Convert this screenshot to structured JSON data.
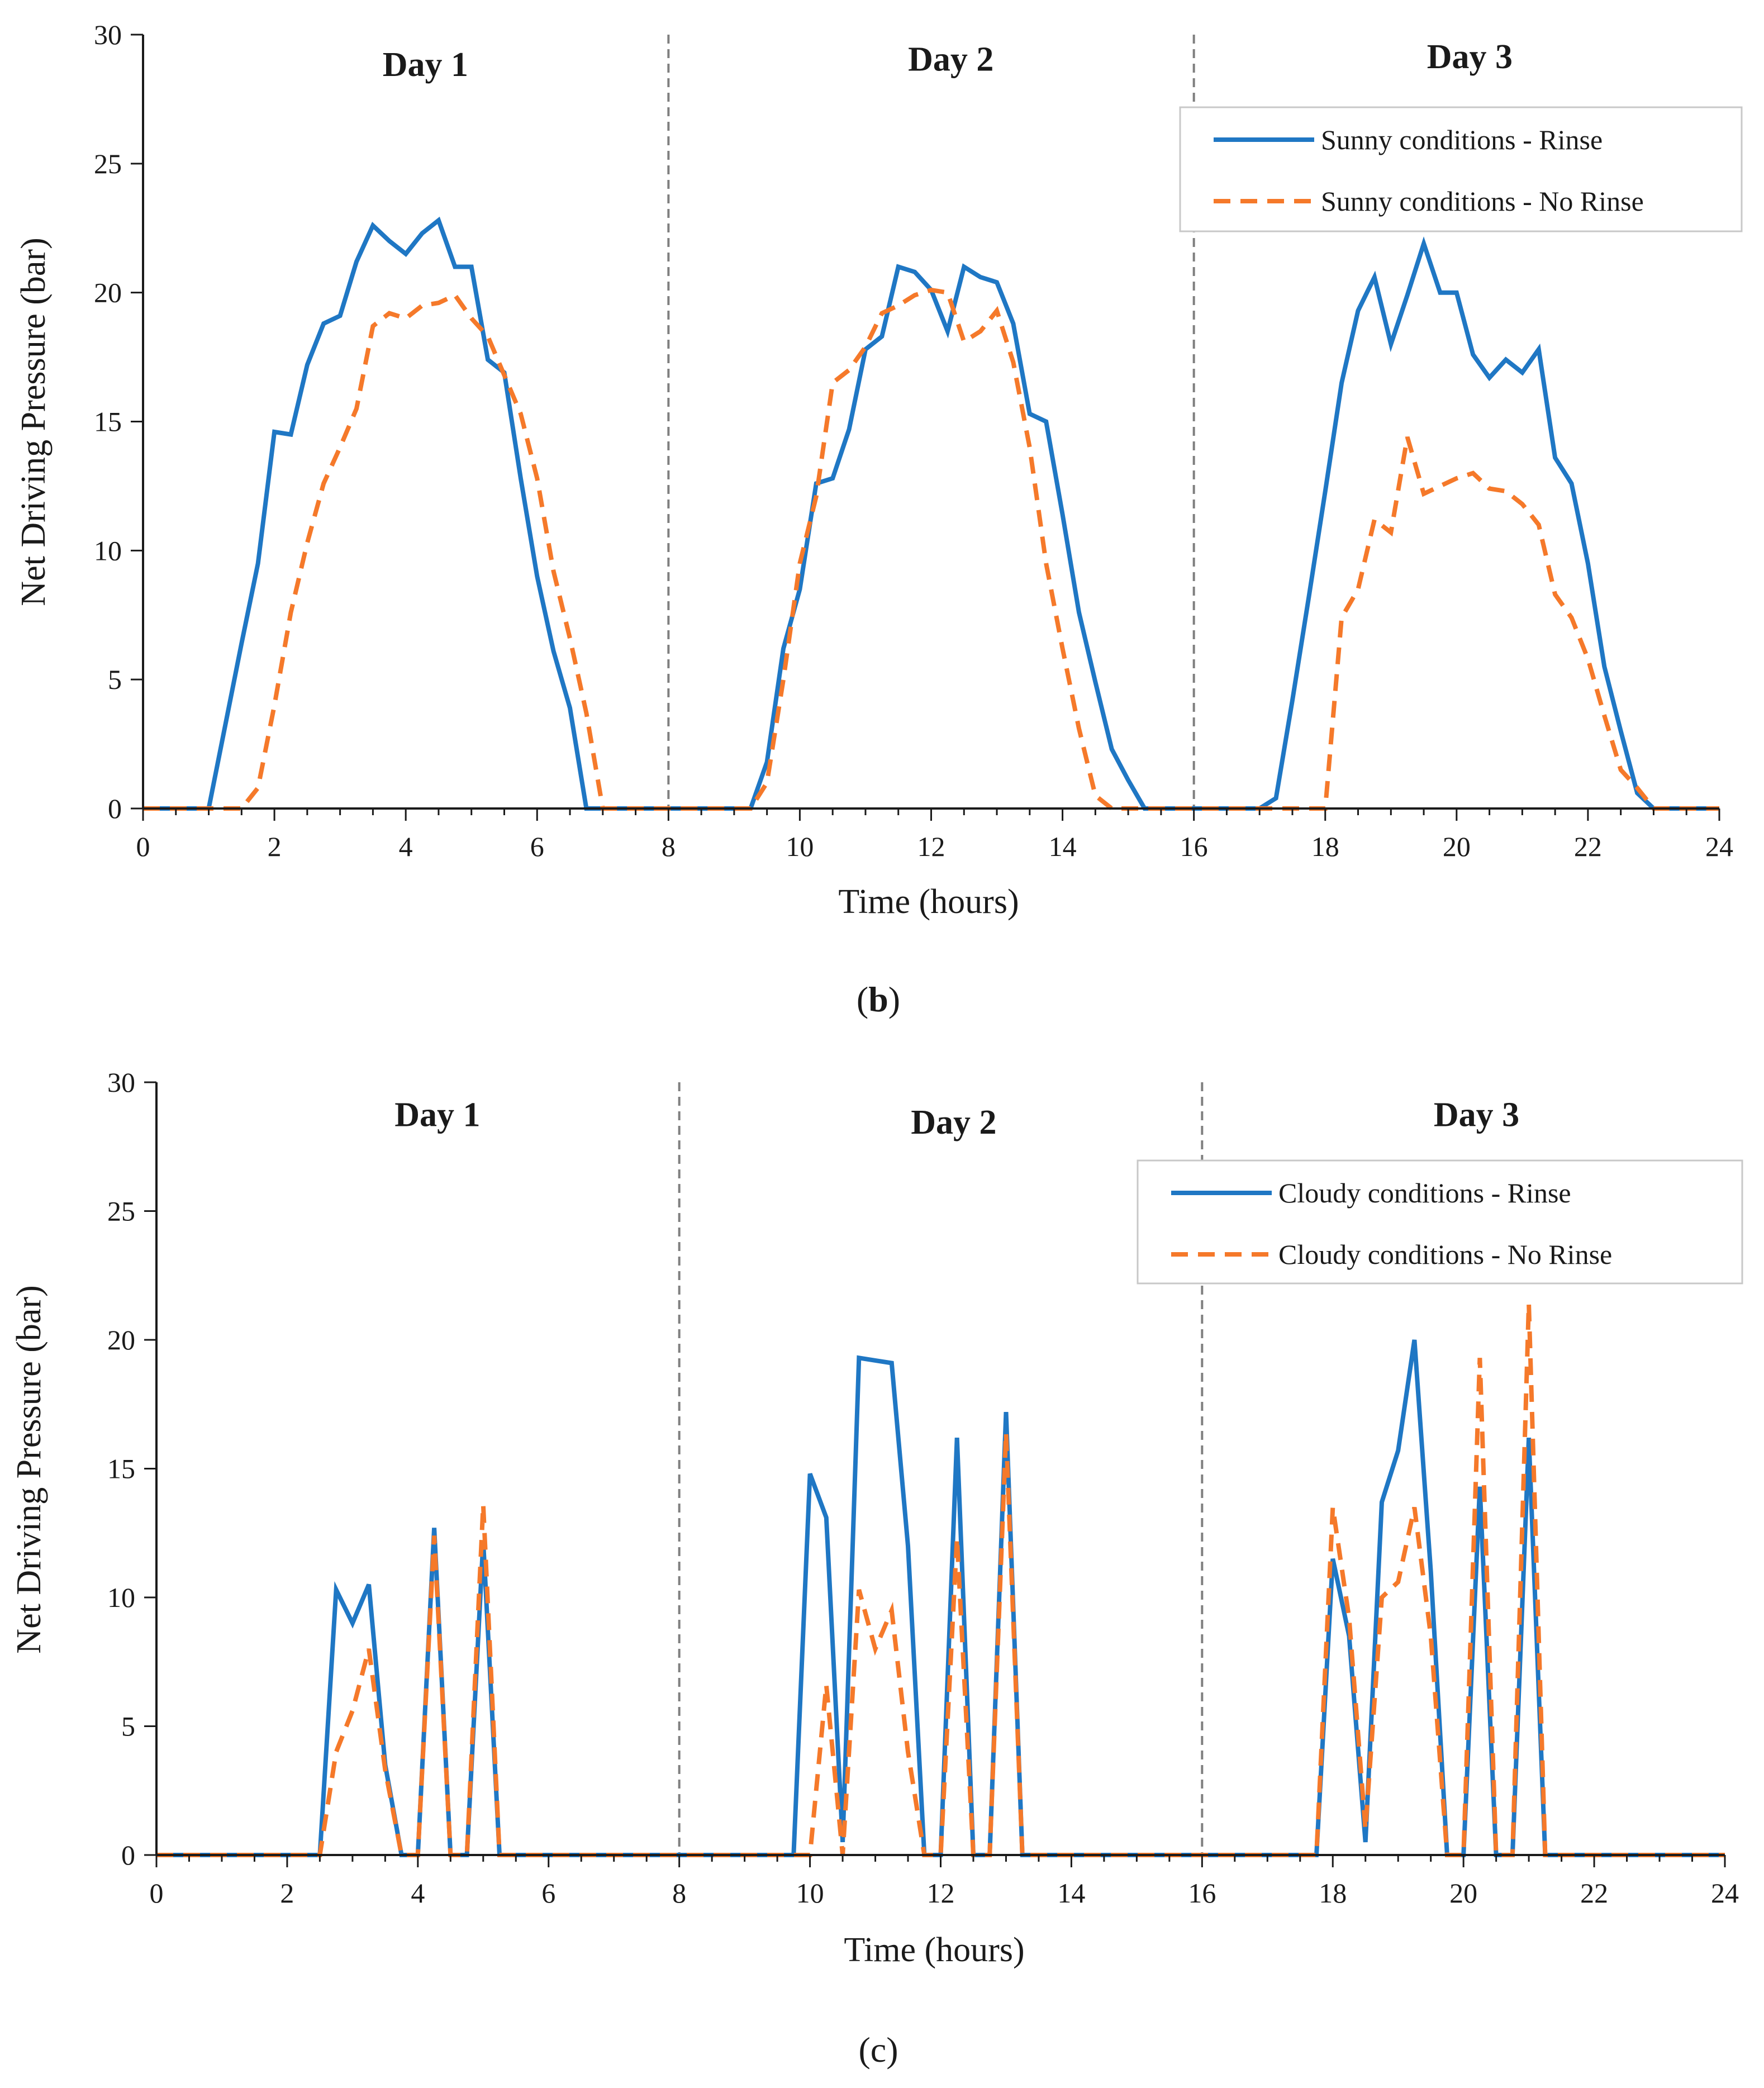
{
  "colors": {
    "rinse": "#1f77c4",
    "no_rinse": "#f5792a",
    "axis": "#1a1a1a",
    "divider": "#7f7f7f",
    "legend_border": "#c8c8c8"
  },
  "chart_data": [
    {
      "type": "line",
      "panel": "b",
      "caption": {
        "open": "(",
        "letter": "b",
        "close": ")"
      },
      "xlabel": "Time (hours)",
      "ylabel": "Net Driving Pressure (bar)",
      "xlim": [
        0,
        24
      ],
      "ylim": [
        0,
        30
      ],
      "xticks": [
        0,
        2,
        4,
        6,
        8,
        10,
        12,
        14,
        16,
        18,
        20,
        22,
        24
      ],
      "yticks": [
        0,
        5,
        10,
        15,
        20,
        25,
        30
      ],
      "day_dividers": [
        8,
        16
      ],
      "day_labels": [
        {
          "text": "Day 1",
          "x": 4.3,
          "y": 28.4
        },
        {
          "text": "Day 2",
          "x": 12.3,
          "y": 28.6
        },
        {
          "text": "Day 3",
          "x": 20.2,
          "y": 28.7
        }
      ],
      "legend": {
        "position": "top-right"
      },
      "series": [
        {
          "name": "Sunny conditions - Rinse",
          "style": "solid",
          "x": [
            0,
            0.25,
            0.5,
            0.75,
            1.0,
            1.25,
            1.5,
            1.75,
            2.0,
            2.25,
            2.5,
            2.75,
            3.0,
            3.25,
            3.5,
            3.75,
            4.0,
            4.25,
            4.5,
            4.75,
            5.0,
            5.25,
            5.5,
            5.75,
            6.0,
            6.25,
            6.5,
            6.75,
            7.0,
            7.25,
            7.5,
            7.75,
            8.0,
            8.25,
            8.5,
            8.75,
            9.0,
            9.25,
            9.5,
            9.75,
            10.0,
            10.25,
            10.5,
            10.75,
            11.0,
            11.25,
            11.5,
            11.75,
            12.0,
            12.25,
            12.5,
            12.75,
            13.0,
            13.25,
            13.5,
            13.75,
            14.0,
            14.25,
            14.5,
            14.75,
            15.0,
            15.25,
            15.5,
            15.75,
            16.0,
            16.25,
            16.5,
            16.75,
            17.0,
            17.25,
            17.5,
            17.75,
            18.0,
            18.25,
            18.5,
            18.75,
            19.0,
            19.25,
            19.5,
            19.75,
            20.0,
            20.25,
            20.5,
            20.75,
            21.0,
            21.25,
            21.5,
            21.75,
            22.0,
            22.25,
            22.5,
            22.75,
            23.0,
            23.25,
            23.5,
            23.75,
            24.0
          ],
          "y": [
            0,
            0,
            0,
            0,
            0,
            3.2,
            6.4,
            9.5,
            14.6,
            14.5,
            17.2,
            18.8,
            19.1,
            21.2,
            22.6,
            22.0,
            21.5,
            22.3,
            22.8,
            21.0,
            21.0,
            17.4,
            16.9,
            12.8,
            9.0,
            6.1,
            3.9,
            0,
            0,
            0,
            0,
            0,
            0,
            0,
            0,
            0,
            0,
            0,
            1.8,
            6.2,
            8.5,
            12.6,
            12.8,
            14.7,
            17.8,
            18.3,
            21.0,
            20.8,
            20.1,
            18.5,
            21.0,
            20.6,
            20.4,
            18.8,
            15.3,
            15.0,
            11.4,
            7.6,
            4.9,
            2.3,
            1.1,
            0,
            0,
            0,
            0,
            0,
            0,
            0,
            0,
            0.4,
            4.2,
            8.2,
            12.3,
            16.5,
            19.3,
            20.6,
            18.0,
            19.9,
            21.9,
            20.0,
            20.0,
            17.6,
            16.7,
            17.4,
            16.9,
            17.8,
            13.6,
            12.6,
            9.5,
            5.5,
            3.0,
            0.6,
            0,
            0,
            0,
            0,
            0
          ]
        },
        {
          "name": "Sunny conditions - No Rinse",
          "style": "dashed",
          "x": [
            0,
            0.25,
            0.5,
            0.75,
            1.0,
            1.25,
            1.5,
            1.75,
            2.0,
            2.25,
            2.5,
            2.75,
            3.0,
            3.25,
            3.5,
            3.75,
            4.0,
            4.25,
            4.5,
            4.75,
            5.0,
            5.25,
            5.5,
            5.75,
            6.0,
            6.25,
            6.5,
            6.75,
            7.0,
            7.25,
            7.5,
            7.75,
            8.0,
            8.25,
            8.5,
            8.75,
            9.0,
            9.25,
            9.5,
            9.75,
            10.0,
            10.25,
            10.5,
            10.75,
            11.0,
            11.25,
            11.5,
            11.75,
            12.0,
            12.25,
            12.5,
            12.75,
            13.0,
            13.25,
            13.5,
            13.75,
            14.0,
            14.25,
            14.5,
            14.75,
            15.0,
            15.25,
            15.5,
            15.75,
            16.0,
            16.25,
            16.5,
            16.75,
            17.0,
            17.25,
            17.5,
            17.75,
            18.0,
            18.25,
            18.5,
            18.75,
            19.0,
            19.25,
            19.5,
            19.75,
            20.0,
            20.25,
            20.5,
            20.75,
            21.0,
            21.25,
            21.5,
            21.75,
            22.0,
            22.25,
            22.5,
            22.75,
            23.0,
            23.25,
            23.5,
            23.75,
            24.0
          ],
          "y": [
            0,
            0,
            0,
            0,
            0,
            0,
            0,
            0.8,
            4.0,
            7.6,
            10.3,
            12.6,
            14.0,
            15.5,
            18.7,
            19.2,
            19.0,
            19.5,
            19.6,
            19.9,
            19.0,
            18.3,
            16.8,
            15.3,
            12.8,
            9.2,
            6.6,
            3.7,
            0,
            0,
            0,
            0,
            0,
            0,
            0,
            0,
            0,
            0,
            1.0,
            5.0,
            9.5,
            12.1,
            16.5,
            17.0,
            17.9,
            19.2,
            19.5,
            19.9,
            20.1,
            20.0,
            18.1,
            18.5,
            19.3,
            17.3,
            14.0,
            9.5,
            6.2,
            3.1,
            0.5,
            0,
            0,
            0,
            0,
            0,
            0,
            0,
            0,
            0,
            0,
            0,
            0,
            0,
            0,
            7.4,
            8.5,
            11.2,
            10.7,
            14.4,
            12.2,
            12.5,
            12.8,
            13.0,
            12.4,
            12.3,
            11.8,
            11.0,
            8.3,
            7.4,
            5.8,
            3.6,
            1.5,
            0.8,
            0,
            0,
            0,
            0,
            0
          ]
        }
      ]
    },
    {
      "type": "line",
      "panel": "c",
      "caption": {
        "open": "(",
        "letter": "c",
        "close": ")"
      },
      "xlabel": "Time (hours)",
      "ylabel": "Net Driving Pressure (bar)",
      "xlim": [
        0,
        24
      ],
      "ylim": [
        0,
        30
      ],
      "xticks": [
        0,
        2,
        4,
        6,
        8,
        10,
        12,
        14,
        16,
        18,
        20,
        22,
        24
      ],
      "yticks": [
        0,
        5,
        10,
        15,
        20,
        25,
        30
      ],
      "day_dividers": [
        8,
        16
      ],
      "day_labels": [
        {
          "text": "Day 1",
          "x": 4.3,
          "y": 28.3
        },
        {
          "text": "Day 2",
          "x": 12.2,
          "y": 28.0
        },
        {
          "text": "Day 3",
          "x": 20.2,
          "y": 28.3
        }
      ],
      "legend": {
        "position": "top-right"
      },
      "series": [
        {
          "name": "Cloudy conditions - Rinse",
          "style": "solid",
          "x": [
            0,
            0.25,
            0.5,
            0.75,
            1.0,
            1.25,
            1.5,
            1.75,
            2.0,
            2.25,
            2.5,
            2.75,
            3.0,
            3.25,
            3.5,
            3.75,
            4.0,
            4.25,
            4.5,
            4.75,
            5.0,
            5.25,
            5.5,
            5.75,
            6.0,
            6.25,
            6.5,
            6.75,
            7.0,
            7.25,
            7.5,
            7.75,
            8.0,
            8.25,
            8.5,
            8.75,
            9.0,
            9.25,
            9.5,
            9.75,
            10.0,
            10.25,
            10.5,
            10.75,
            11.0,
            11.25,
            11.5,
            11.75,
            12.0,
            12.25,
            12.5,
            12.75,
            13.0,
            13.25,
            13.5,
            13.75,
            14.0,
            14.25,
            14.5,
            14.75,
            15.0,
            15.25,
            15.5,
            15.75,
            16.0,
            16.25,
            16.5,
            16.75,
            17.0,
            17.25,
            17.5,
            17.75,
            18.0,
            18.25,
            18.5,
            18.75,
            19.0,
            19.25,
            19.5,
            19.75,
            20.0,
            20.25,
            20.5,
            20.75,
            21.0,
            21.25,
            21.5,
            21.75,
            22.0,
            22.25,
            22.5,
            22.75,
            23.0,
            23.25,
            23.5,
            23.75,
            24.0
          ],
          "y": [
            0,
            0,
            0,
            0,
            0,
            0,
            0,
            0,
            0,
            0,
            0,
            10.3,
            9.0,
            10.5,
            3.5,
            0,
            0,
            12.7,
            0,
            0,
            12.2,
            0,
            0,
            0,
            0,
            0,
            0,
            0,
            0,
            0,
            0,
            0,
            0,
            0,
            0,
            0,
            0,
            0,
            0,
            0,
            14.8,
            13.1,
            0.5,
            19.3,
            19.2,
            19.1,
            12.0,
            0,
            0,
            16.2,
            0,
            0,
            17.2,
            0,
            0,
            0,
            0,
            0,
            0,
            0,
            0,
            0,
            0,
            0,
            0,
            0,
            0,
            0,
            0,
            0,
            0,
            0,
            11.5,
            8.5,
            0.5,
            13.7,
            15.7,
            20.0,
            11.0,
            0,
            0,
            14.3,
            0,
            0,
            16.2,
            0,
            0,
            0,
            0,
            0,
            0,
            0,
            0,
            0,
            0,
            0,
            0
          ]
        },
        {
          "name": "Cloudy conditions - No Rinse",
          "style": "dashed",
          "x": [
            0,
            0.25,
            0.5,
            0.75,
            1.0,
            1.25,
            1.5,
            1.75,
            2.0,
            2.25,
            2.5,
            2.75,
            3.0,
            3.25,
            3.5,
            3.75,
            4.0,
            4.25,
            4.5,
            4.75,
            5.0,
            5.25,
            5.5,
            5.75,
            6.0,
            6.25,
            6.5,
            6.75,
            7.0,
            7.25,
            7.5,
            7.75,
            8.0,
            8.25,
            8.5,
            8.75,
            9.0,
            9.25,
            9.5,
            9.75,
            10.0,
            10.25,
            10.5,
            10.75,
            11.0,
            11.25,
            11.5,
            11.75,
            12.0,
            12.25,
            12.5,
            12.75,
            13.0,
            13.25,
            13.5,
            13.75,
            14.0,
            14.25,
            14.5,
            14.75,
            15.0,
            15.25,
            15.5,
            15.75,
            16.0,
            16.25,
            16.5,
            16.75,
            17.0,
            17.25,
            17.5,
            17.75,
            18.0,
            18.25,
            18.5,
            18.75,
            19.0,
            19.25,
            19.5,
            19.75,
            20.0,
            20.25,
            20.5,
            20.75,
            21.0,
            21.25,
            21.5,
            21.75,
            22.0,
            22.25,
            22.5,
            22.75,
            23.0,
            23.25,
            23.5,
            23.75,
            24.0
          ],
          "y": [
            0,
            0,
            0,
            0,
            0,
            0,
            0,
            0,
            0,
            0,
            0,
            4.0,
            5.6,
            8.0,
            3.3,
            0,
            0,
            12.4,
            0,
            0,
            13.6,
            0,
            0,
            0,
            0,
            0,
            0,
            0,
            0,
            0,
            0,
            0,
            0,
            0,
            0,
            0,
            0,
            0,
            0,
            0,
            0,
            6.6,
            0,
            10.3,
            8.0,
            9.5,
            4.0,
            0,
            0,
            12.3,
            0,
            0,
            16.4,
            0,
            0,
            0,
            0,
            0,
            0,
            0,
            0,
            0,
            0,
            0,
            0,
            0,
            0,
            0,
            0,
            0,
            0,
            0,
            13.5,
            9.2,
            1.0,
            10.0,
            10.6,
            13.5,
            8.5,
            0,
            0,
            19.3,
            0,
            0,
            21.4,
            0,
            0,
            0,
            0,
            0,
            0,
            0,
            0,
            0,
            0,
            0,
            0
          ]
        }
      ]
    }
  ]
}
